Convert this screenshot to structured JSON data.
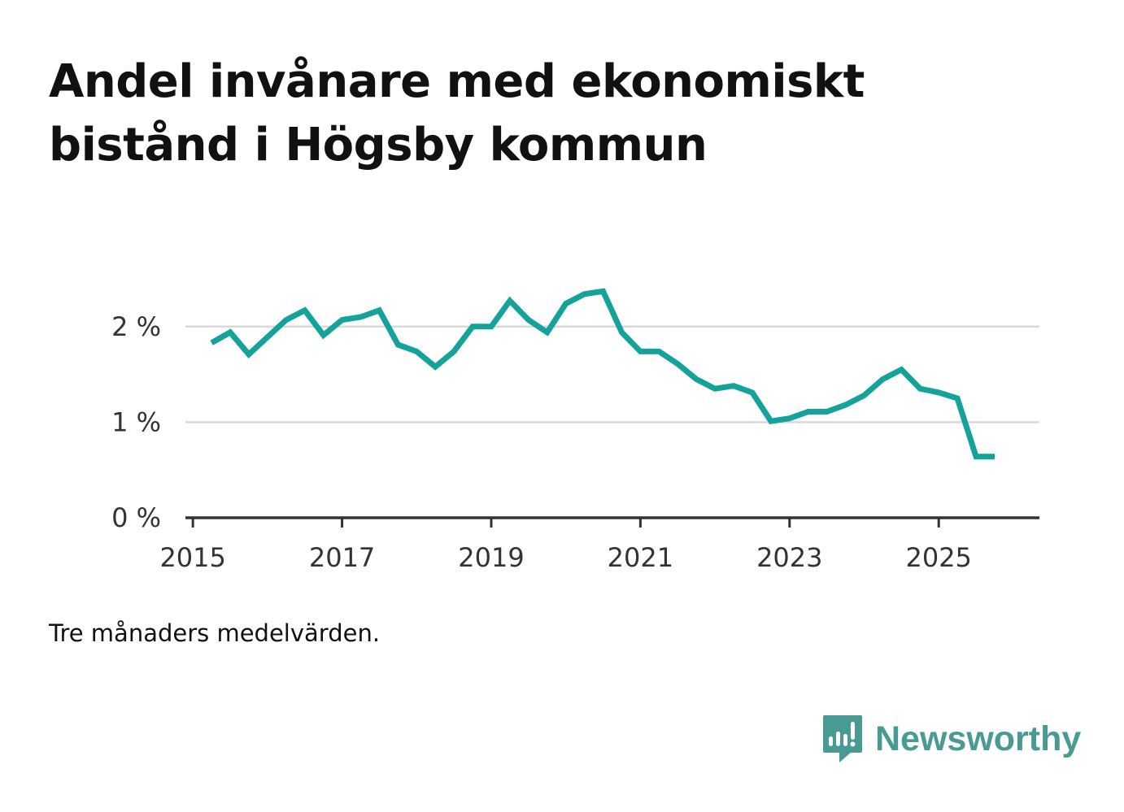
{
  "title": "Andel invånare med ekonomiskt bistånd i Högsby kommun",
  "note": "Tre månaders medelvärden.",
  "brand": {
    "name": "Newsworthy",
    "icon": "newsworthy-logo-icon",
    "color": "#4a9a94"
  },
  "chart_data": {
    "type": "line",
    "title": "Andel invånare med ekonomiskt bistånd i Högsby kommun",
    "xlabel": "",
    "ylabel": "",
    "grid": true,
    "line_color": "#14a39a",
    "xlim": [
      2014.9,
      2026.35
    ],
    "ylim": [
      0,
      2.5
    ],
    "x_ticks": [
      2015,
      2017,
      2019,
      2021,
      2023,
      2025
    ],
    "x_tick_labels": [
      "2015",
      "2017",
      "2019",
      "2021",
      "2023",
      "2025"
    ],
    "y_ticks": [
      0,
      1,
      2
    ],
    "y_tick_labels": [
      "0 %",
      "1 %",
      "2 %"
    ],
    "series": [
      {
        "name": "Andel invånare med ekonomiskt bistånd",
        "x": [
          2015.25,
          2015.5,
          2015.75,
          2016.0,
          2016.25,
          2016.5,
          2016.75,
          2017.0,
          2017.25,
          2017.5,
          2017.75,
          2018.0,
          2018.25,
          2018.5,
          2018.75,
          2019.0,
          2019.25,
          2019.5,
          2019.75,
          2020.0,
          2020.25,
          2020.5,
          2020.75,
          2021.0,
          2021.25,
          2021.5,
          2021.75,
          2022.0,
          2022.25,
          2022.5,
          2022.75,
          2023.0,
          2023.25,
          2023.5,
          2023.75,
          2024.0,
          2024.25,
          2024.5,
          2024.75,
          2025.0,
          2025.25,
          2025.5,
          2025.75
        ],
        "values": [
          1.83,
          1.94,
          1.71,
          1.89,
          2.07,
          2.17,
          1.91,
          2.07,
          2.1,
          2.17,
          1.81,
          1.74,
          1.58,
          1.74,
          2.0,
          2.0,
          2.27,
          2.07,
          1.94,
          2.24,
          2.34,
          2.37,
          1.94,
          1.74,
          1.74,
          1.61,
          1.45,
          1.35,
          1.38,
          1.31,
          1.01,
          1.04,
          1.11,
          1.11,
          1.18,
          1.28,
          1.45,
          1.55,
          1.35,
          1.31,
          1.25,
          0.64,
          0.64
        ]
      }
    ]
  }
}
